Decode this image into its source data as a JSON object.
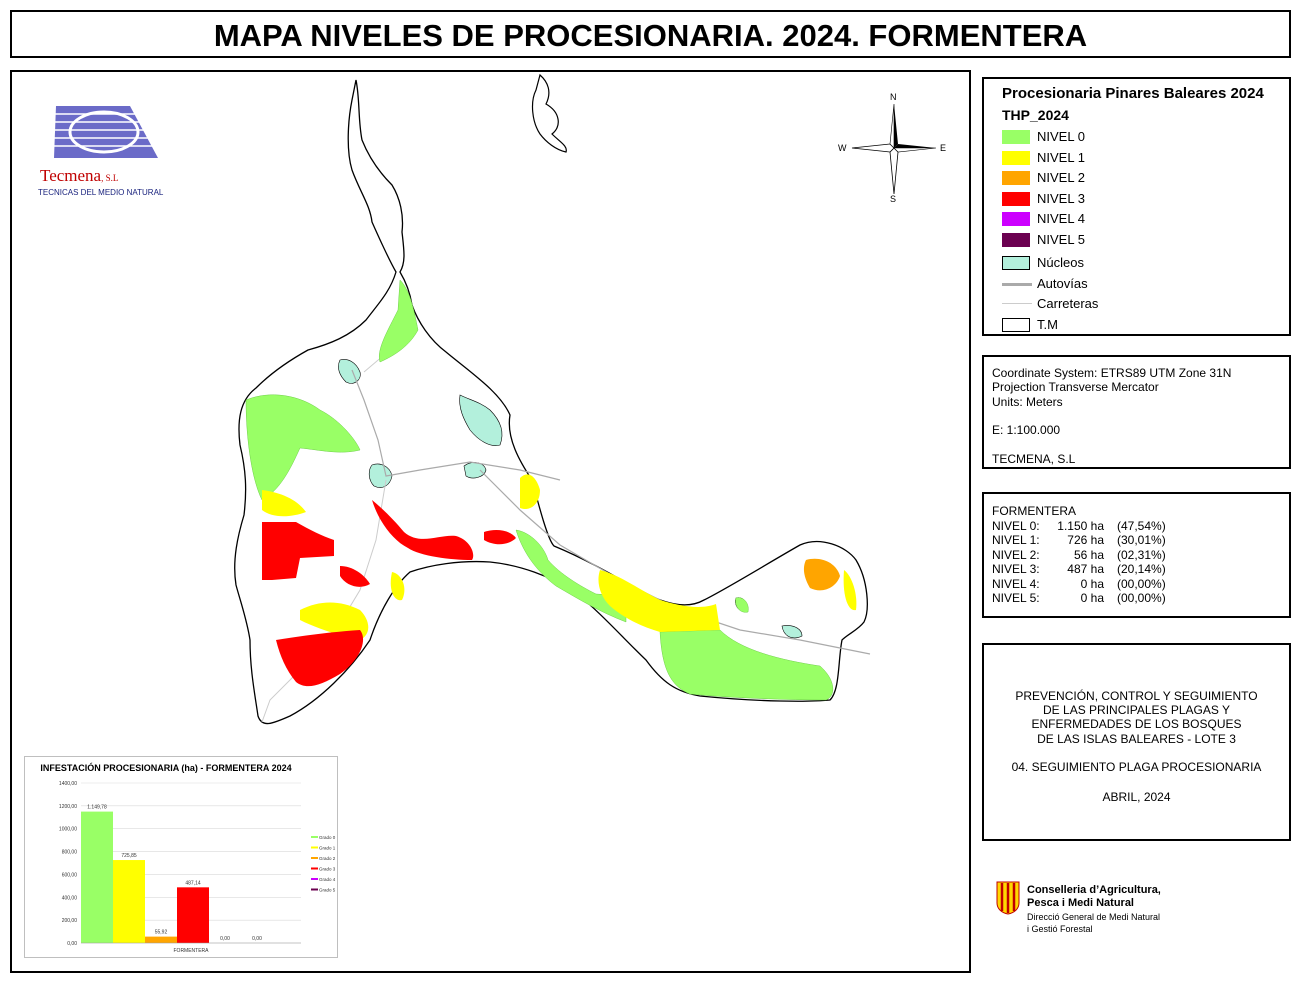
{
  "title": "MAPA NIVELES DE PROCESIONARIA. 2024. FORMENTERA",
  "logo": {
    "brand": "Tecmena",
    "brand_suffix": ", S.L",
    "tagline": "TECNICAS DEL MEDIO NATURAL"
  },
  "compass": {
    "n": "N",
    "s": "S",
    "e": "E",
    "w": "W"
  },
  "legend": {
    "title": "Procesionaria Pinares Baleares 2024",
    "subtitle": "THP_2024",
    "items": [
      {
        "label": "NIVEL 0",
        "color": "#99ff66"
      },
      {
        "label": "NIVEL 1",
        "color": "#ffff00"
      },
      {
        "label": "NIVEL 2",
        "color": "#ffa500"
      },
      {
        "label": "NIVEL 3",
        "color": "#ff0000"
      },
      {
        "label": "NIVEL 4",
        "color": "#cc00ff"
      },
      {
        "label": "NIVEL 5",
        "color": "#6b0050"
      },
      {
        "label": "Núcleos",
        "color": "#b3f0dc"
      }
    ],
    "lines": [
      {
        "label": "Autovías",
        "color": "#aaaaaa"
      },
      {
        "label": "Carreteras",
        "color": "#cccccc"
      }
    ],
    "tm_label": "T.M"
  },
  "coord": {
    "system": "Coordinate System: ETRS89 UTM Zone 31N",
    "projection": "Projection Transverse Mercator",
    "units": "Units: Meters",
    "scale": "E: 1:100.000",
    "author": "TECMENA, S.L"
  },
  "stats": {
    "title": "FORMENTERA",
    "rows": [
      {
        "k": "NIVEL 0:",
        "v": "1.150 ha",
        "p": "(47,54%)"
      },
      {
        "k": "NIVEL 1:",
        "v": "726 ha",
        "p": "(30,01%)"
      },
      {
        "k": "NIVEL 2:",
        "v": "56 ha",
        "p": "(02,31%)"
      },
      {
        "k": "NIVEL 3:",
        "v": "487 ha",
        "p": "(20,14%)"
      },
      {
        "k": "NIVEL 4:",
        "v": "0 ha",
        "p": "(00,00%)"
      },
      {
        "k": "NIVEL 5:",
        "v": "0 ha",
        "p": "(00,00%)"
      }
    ]
  },
  "project": {
    "line1": "PREVENCIÓN, CONTROL Y SEGUIMIENTO",
    "line2": "DE LAS PRINCIPALES PLAGAS Y",
    "line3": "ENFERMEDADES DE LOS BOSQUES",
    "line4": "DE LAS ISLAS BALEARES - LOTE 3",
    "line5": "04. SEGUIMIENTO PLAGA PROCESIONARIA",
    "line6": "ABRIL, 2024"
  },
  "conselleria": {
    "line1": "Conselleria d’Agricultura,",
    "line2": "Pesca i Medi Natural",
    "line3": "Direcció General de Medi Natural",
    "line4": "i Gestió Forestal"
  },
  "chart_data": {
    "type": "bar",
    "title": "INFESTACIÓN PROCESIONARIA (ha) - FORMENTERA 2024",
    "categories": [
      "FORMENTERA"
    ],
    "series": [
      {
        "name": "Grado 0",
        "values": [
          1149.78
        ],
        "label": "1.149,78",
        "color": "#99ff66"
      },
      {
        "name": "Grado 1",
        "values": [
          725.85
        ],
        "label": "725,85",
        "color": "#ffff00"
      },
      {
        "name": "Grado 2",
        "values": [
          55.92
        ],
        "label": "55,92",
        "color": "#ffa500"
      },
      {
        "name": "Grado 3",
        "values": [
          487.14
        ],
        "label": "487,14",
        "color": "#ff0000"
      },
      {
        "name": "Grado 4",
        "values": [
          0
        ],
        "label": "0,00",
        "color": "#cc00ff"
      },
      {
        "name": "Grado 5",
        "values": [
          0
        ],
        "label": "0,00",
        "color": "#6b0050"
      }
    ],
    "ylim": [
      0,
      1400
    ],
    "yticks": [
      "0,00",
      "200,00",
      "400,00",
      "600,00",
      "800,00",
      "1000,00",
      "1200,00",
      "1400,00"
    ],
    "grid": true,
    "legend": "right"
  }
}
